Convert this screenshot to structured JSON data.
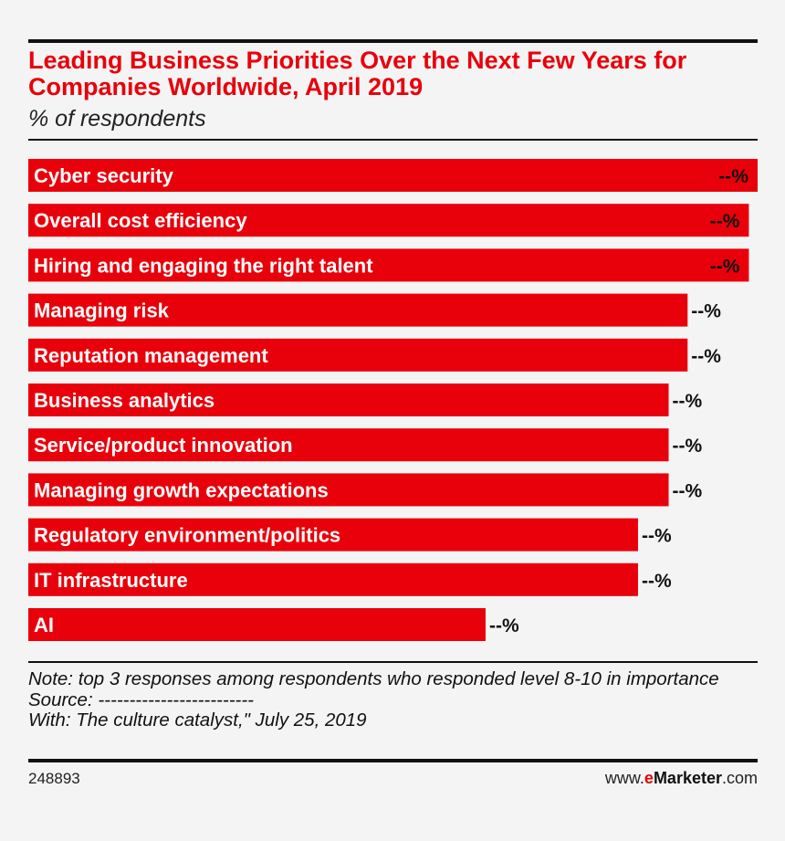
{
  "header": {
    "title": "Leading Business Priorities Over the Next Few Years for Companies Worldwide, April 2019",
    "subtitle": "% of respondents"
  },
  "colors": {
    "bar": "#e8000b",
    "accent": "#e8000b",
    "text": "#111111",
    "background": "#f4f4f4"
  },
  "chart_data": {
    "type": "bar",
    "orientation": "horizontal",
    "title": "Leading Business Priorities Over the Next Few Years for Companies Worldwide, April 2019",
    "ylabel": "% of respondents",
    "categories": [
      "Cyber security",
      "Overall cost efficiency",
      "Hiring and engaging the right talent",
      "Managing risk",
      "Reputation management",
      "Business analytics",
      "Service/product innovation",
      "Managing growth expectations",
      "Regulatory environment/politics",
      "IT infrastructure",
      "AI"
    ],
    "values": [
      100,
      98.8,
      98.8,
      90.4,
      90.4,
      87.8,
      87.8,
      87.8,
      83.6,
      83.6,
      62.7
    ],
    "value_labels": [
      "--%",
      "--%",
      "--%",
      "--%",
      "--%",
      "--%",
      "--%",
      "--%",
      "--%",
      "--%",
      "--%"
    ],
    "xlim": [
      0,
      100
    ]
  },
  "footer": {
    "note": "Note: top 3 responses among respondents who responded level 8-10 in importance",
    "source": "Source: -------------------------",
    "with": "With: The culture catalyst,\" July 25, 2019",
    "chart_id": "248893",
    "brand_prefix": "www.",
    "brand_e": "e",
    "brand_name": "Marketer",
    "brand_suffix": ".com"
  }
}
